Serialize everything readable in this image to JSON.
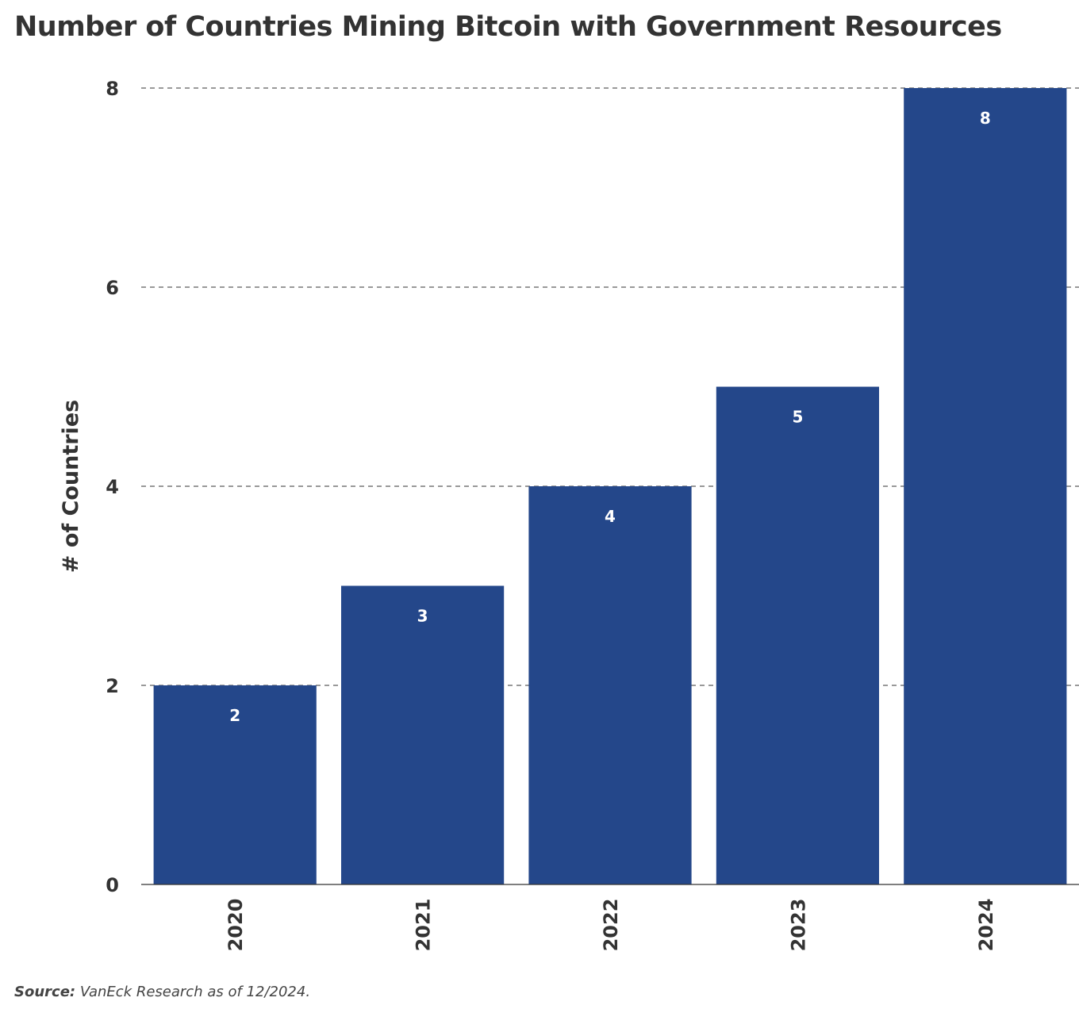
{
  "chart_data": {
    "type": "bar",
    "title": "Number of Countries Mining Bitcoin with Government Resources",
    "xlabel": "",
    "ylabel": "# of Countries",
    "categories": [
      "2020",
      "2021",
      "2022",
      "2023",
      "2024"
    ],
    "values": [
      2,
      3,
      4,
      5,
      8
    ],
    "data_labels": [
      "2",
      "3",
      "4",
      "5",
      "8"
    ],
    "ylim": [
      0,
      8
    ],
    "yticks": [
      0,
      2,
      4,
      6,
      8
    ],
    "ytick_labels": [
      "0",
      "2",
      "4",
      "6",
      "8"
    ],
    "grid": "horizontal dashed",
    "legend": "none",
    "bar_color": "#24478a",
    "label_color": "#ffffff",
    "text_color": "#333333"
  },
  "footer": {
    "source_label": "Source:",
    "source_text": " VanEck Research as of 12/2024."
  }
}
